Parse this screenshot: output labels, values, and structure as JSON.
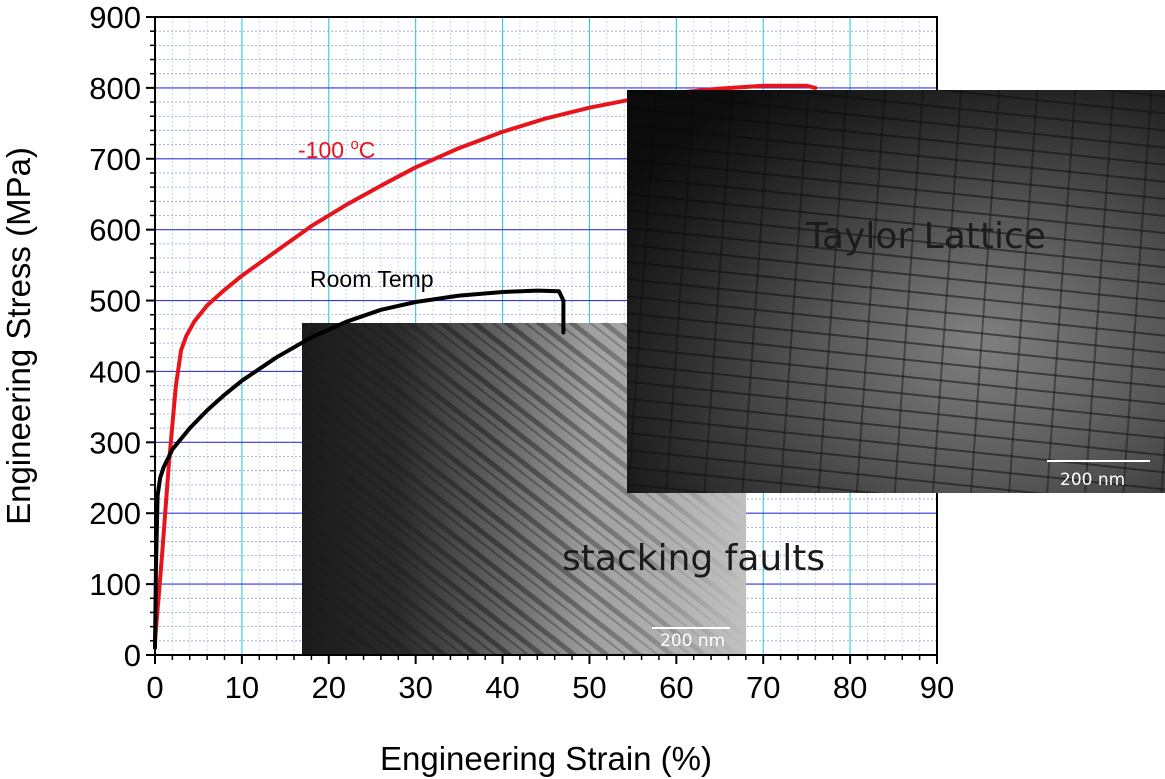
{
  "chart_data": {
    "type": "line",
    "xlabel": "Engineering Strain (%)",
    "ylabel": "Engineering Stress (MPa)",
    "xlim": [
      0,
      90
    ],
    "ylim": [
      0,
      900
    ],
    "x_ticks": [
      0,
      10,
      20,
      30,
      40,
      50,
      60,
      70,
      80,
      90
    ],
    "y_ticks": [
      0,
      100,
      200,
      300,
      400,
      500,
      600,
      700,
      800,
      900
    ],
    "grid": true,
    "series": [
      {
        "name": "-100 °C",
        "color": "#e8141c",
        "x": [
          0,
          0.8,
          1.6,
          2.4,
          3.0,
          3.6,
          4.5,
          6,
          8,
          10,
          14,
          18,
          22,
          26,
          30,
          35,
          40,
          45,
          50,
          55,
          60,
          65,
          70,
          75,
          76
        ],
        "y": [
          20,
          140,
          270,
          380,
          430,
          450,
          470,
          493,
          515,
          535,
          570,
          605,
          635,
          662,
          688,
          715,
          738,
          757,
          772,
          784,
          793,
          799,
          803,
          803,
          800
        ]
      },
      {
        "name": "Room Temp",
        "color": "#000000",
        "x": [
          0,
          0.1,
          0.3,
          0.6,
          1,
          2,
          4,
          6,
          8,
          10,
          14,
          18,
          22,
          26,
          30,
          35,
          40,
          44,
          46.5,
          47,
          47
        ],
        "y": [
          10,
          120,
          225,
          250,
          265,
          290,
          320,
          345,
          367,
          387,
          420,
          448,
          470,
          487,
          498,
          507,
          512,
          514,
          513,
          500,
          455
        ]
      }
    ]
  },
  "annotations": {
    "red_label": {
      "text_main": "-100 ",
      "superscript": "o",
      "text_end": "C",
      "color": "#e8141c"
    },
    "black_label": {
      "text": "Room Temp",
      "color": "#000000"
    }
  },
  "insets": {
    "stacking": {
      "caption": "stacking faults",
      "scale_bar": "200 nm"
    },
    "taylor": {
      "caption": "Taylor Lattice",
      "scale_bar": "200 nm"
    }
  }
}
